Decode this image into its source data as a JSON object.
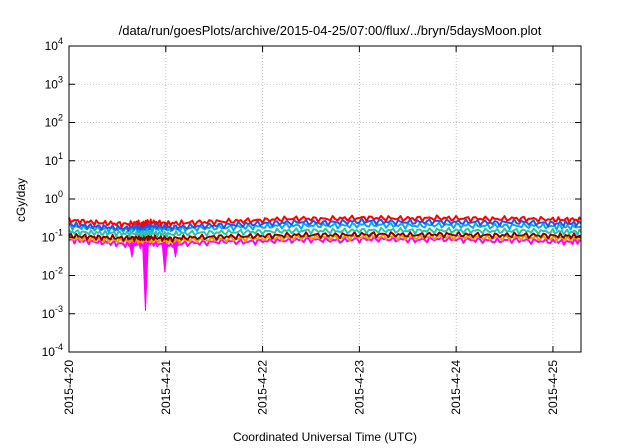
{
  "chart_data": {
    "type": "line",
    "title": "/data/run/goesPlots/archive/2015-04-25/07:00/flux/../bryn/5daysMoon.plot",
    "xlabel": "Coordinated Universal Time (UTC)",
    "ylabel": "cGy/day",
    "y_scale": "log",
    "ylim": [
      0.0001,
      10000
    ],
    "xlim": [
      "2015-04-20 00:00",
      "2015-04-25 07:00"
    ],
    "grid": true,
    "legend": "none",
    "y_ticks": [
      {
        "base": "10",
        "exp": "-4",
        "value": 0.0001
      },
      {
        "base": "10",
        "exp": "-3",
        "value": 0.001
      },
      {
        "base": "10",
        "exp": "-2",
        "value": 0.01
      },
      {
        "base": "10",
        "exp": "-1",
        "value": 0.1
      },
      {
        "base": "10",
        "exp": "0",
        "value": 1
      },
      {
        "base": "10",
        "exp": "1",
        "value": 10
      },
      {
        "base": "10",
        "exp": "2",
        "value": 100
      },
      {
        "base": "10",
        "exp": "3",
        "value": 1000
      },
      {
        "base": "10",
        "exp": "4",
        "value": 10000
      }
    ],
    "x_ticks": [
      {
        "label": "2015-4-20",
        "value": 0
      },
      {
        "label": "2015-4-21",
        "value": 1
      },
      {
        "label": "2015-4-22",
        "value": 2
      },
      {
        "label": "2015-4-23",
        "value": 3
      },
      {
        "label": "2015-4-24",
        "value": 4
      },
      {
        "label": "2015-4-25",
        "value": 5
      }
    ],
    "series": [
      {
        "color": "#ff00ff",
        "values": [
          0.085,
          0.08,
          0.075,
          0.07,
          0.065,
          0.068,
          0.062,
          0.075,
          0.07,
          0.065,
          0.06,
          0.07,
          0.072,
          0.078,
          0.075,
          0.08,
          0.082,
          0.085,
          0.086,
          0.082,
          0.088,
          0.09,
          0.087,
          0.085,
          0.09,
          0.088,
          0.085,
          0.08,
          0.085,
          0.08,
          0.078,
          0.075,
          0.08
        ]
      },
      {
        "color": "#e8a000",
        "values": [
          0.095,
          0.09,
          0.088,
          0.085,
          0.082,
          0.084,
          0.08,
          0.088,
          0.085,
          0.082,
          0.08,
          0.085,
          0.088,
          0.09,
          0.092,
          0.095,
          0.097,
          0.1,
          0.1,
          0.098,
          0.102,
          0.104,
          0.1,
          0.1,
          0.104,
          0.102,
          0.1,
          0.097,
          0.1,
          0.098,
          0.095,
          0.093,
          0.095
        ]
      },
      {
        "color": "#8b0000",
        "values": [
          0.11,
          0.105,
          0.1,
          0.098,
          0.095,
          0.097,
          0.093,
          0.1,
          0.098,
          0.095,
          0.092,
          0.098,
          0.1,
          0.104,
          0.106,
          0.11,
          0.112,
          0.115,
          0.115,
          0.113,
          0.118,
          0.12,
          0.117,
          0.115,
          0.12,
          0.118,
          0.115,
          0.112,
          0.115,
          0.113,
          0.11,
          0.108,
          0.11
        ]
      },
      {
        "color": "#2ec4a0",
        "values": [
          0.14,
          0.135,
          0.13,
          0.128,
          0.125,
          0.127,
          0.122,
          0.13,
          0.128,
          0.125,
          0.12,
          0.128,
          0.13,
          0.135,
          0.138,
          0.14,
          0.145,
          0.148,
          0.148,
          0.145,
          0.15,
          0.152,
          0.15,
          0.148,
          0.152,
          0.15,
          0.148,
          0.145,
          0.148,
          0.145,
          0.14,
          0.138,
          0.14
        ]
      },
      {
        "color": "#00aaff",
        "values": [
          0.19,
          0.18,
          0.17,
          0.16,
          0.16,
          0.165,
          0.16,
          0.17,
          0.17,
          0.165,
          0.16,
          0.17,
          0.175,
          0.18,
          0.185,
          0.19,
          0.2,
          0.2,
          0.205,
          0.2,
          0.21,
          0.21,
          0.205,
          0.2,
          0.21,
          0.205,
          0.2,
          0.195,
          0.2,
          0.198,
          0.19,
          0.185,
          0.19
        ]
      },
      {
        "color": "#2255ee",
        "values": [
          0.22,
          0.2,
          0.19,
          0.18,
          0.17,
          0.19,
          0.17,
          0.2,
          0.2,
          0.19,
          0.18,
          0.19,
          0.2,
          0.21,
          0.22,
          0.23,
          0.24,
          0.25,
          0.24,
          0.25,
          0.26,
          0.26,
          0.25,
          0.25,
          0.26,
          0.25,
          0.25,
          0.24,
          0.25,
          0.24,
          0.23,
          0.23,
          0.23
        ]
      },
      {
        "color": "#ff0000",
        "values": [
          0.28,
          0.26,
          0.24,
          0.23,
          0.22,
          0.24,
          0.22,
          0.25,
          0.25,
          0.24,
          0.23,
          0.24,
          0.25,
          0.26,
          0.27,
          0.28,
          0.3,
          0.31,
          0.3,
          0.31,
          0.32,
          0.32,
          0.31,
          0.31,
          0.32,
          0.31,
          0.31,
          0.3,
          0.31,
          0.3,
          0.29,
          0.29,
          0.29
        ]
      }
    ],
    "x": [
      0.0,
      0.15,
      0.3,
      0.45,
      0.6,
      0.7,
      0.75,
      0.8,
      0.85,
      0.95,
      1.05,
      1.2,
      1.4,
      1.6,
      1.8,
      2.0,
      2.2,
      2.4,
      2.6,
      2.8,
      3.0,
      3.2,
      3.4,
      3.6,
      3.8,
      4.0,
      4.2,
      4.4,
      4.6,
      4.8,
      5.0,
      5.15,
      5.29
    ],
    "dips": [
      {
        "x": 0.65,
        "value": 0.03
      },
      {
        "x": 0.79,
        "value": 0.0012
      },
      {
        "x": 0.99,
        "value": 0.012
      },
      {
        "x": 1.1,
        "value": 0.03
      }
    ]
  }
}
